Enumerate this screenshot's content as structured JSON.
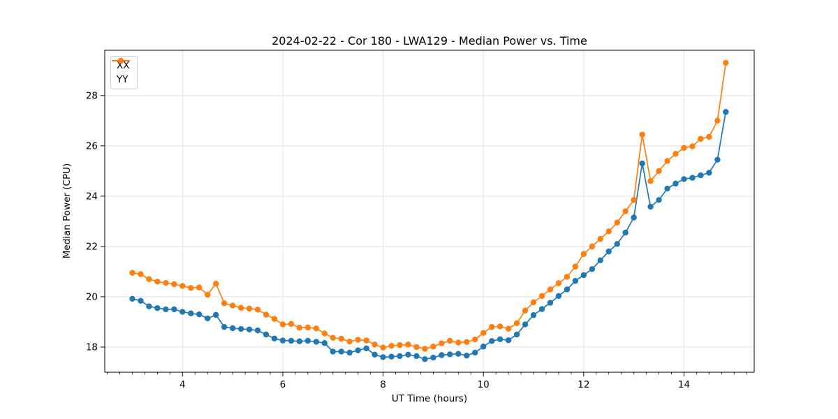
{
  "chart_data": {
    "type": "line",
    "title": "2024-02-22 - Cor 180 - LWA129 - Median Power vs. Time",
    "xlabel": "UT Time (hours)",
    "ylabel": "Median Power (CPU)",
    "xlim": [
      2.45,
      15.4
    ],
    "ylim": [
      17.0,
      29.8
    ],
    "xticks": [
      4,
      6,
      8,
      10,
      12,
      14
    ],
    "yticks": [
      18,
      20,
      22,
      24,
      26,
      28
    ],
    "grid": true,
    "legend_position": "upper-left",
    "background_color": "#ffffff",
    "grid_color": "#cccccc",
    "x": [
      3.0,
      3.167,
      3.333,
      3.5,
      3.667,
      3.833,
      4.0,
      4.167,
      4.333,
      4.5,
      4.667,
      4.833,
      5.0,
      5.167,
      5.333,
      5.5,
      5.667,
      5.833,
      6.0,
      6.167,
      6.333,
      6.5,
      6.667,
      6.833,
      7.0,
      7.167,
      7.333,
      7.5,
      7.667,
      7.833,
      8.0,
      8.167,
      8.333,
      8.5,
      8.667,
      8.833,
      9.0,
      9.167,
      9.333,
      9.5,
      9.667,
      9.833,
      10.0,
      10.167,
      10.333,
      10.5,
      10.667,
      10.833,
      11.0,
      11.167,
      11.333,
      11.5,
      11.667,
      11.833,
      12.0,
      12.167,
      12.333,
      12.5,
      12.667,
      12.833,
      13.0,
      13.167,
      13.333,
      13.5,
      13.667,
      13.833,
      14.0,
      14.167,
      14.333,
      14.5,
      14.667,
      14.833
    ],
    "series": [
      {
        "name": "XX",
        "color": "#1f77b4",
        "marker": "circle",
        "values": [
          19.92,
          19.84,
          19.62,
          19.55,
          19.5,
          19.5,
          19.4,
          19.34,
          19.3,
          19.14,
          19.28,
          18.8,
          18.75,
          18.72,
          18.7,
          18.66,
          18.5,
          18.34,
          18.26,
          18.25,
          18.23,
          18.25,
          18.21,
          18.16,
          17.82,
          17.82,
          17.78,
          17.87,
          17.95,
          17.7,
          17.6,
          17.62,
          17.64,
          17.7,
          17.64,
          17.52,
          17.58,
          17.68,
          17.71,
          17.73,
          17.66,
          17.78,
          18.02,
          18.24,
          18.31,
          18.27,
          18.5,
          18.9,
          19.27,
          19.51,
          19.76,
          20.03,
          20.29,
          20.63,
          20.86,
          21.1,
          21.45,
          21.8,
          22.1,
          22.55,
          23.15,
          25.3,
          23.58,
          23.85,
          24.3,
          24.5,
          24.68,
          24.73,
          24.83,
          24.93,
          25.45,
          27.35
        ]
      },
      {
        "name": "YY",
        "color": "#ff7f0e",
        "marker": "circle",
        "values": [
          20.95,
          20.9,
          20.7,
          20.6,
          20.55,
          20.5,
          20.43,
          20.35,
          20.37,
          20.08,
          20.52,
          19.74,
          19.65,
          19.56,
          19.53,
          19.49,
          19.29,
          19.12,
          18.9,
          18.92,
          18.77,
          18.78,
          18.74,
          18.54,
          18.37,
          18.33,
          18.22,
          18.29,
          18.26,
          18.1,
          17.98,
          18.05,
          18.08,
          18.1,
          18.0,
          17.93,
          18.02,
          18.15,
          18.25,
          18.18,
          18.2,
          18.3,
          18.56,
          18.8,
          18.82,
          18.73,
          18.95,
          19.45,
          19.78,
          20.03,
          20.29,
          20.54,
          20.79,
          21.2,
          21.7,
          22.0,
          22.3,
          22.6,
          22.95,
          23.4,
          23.85,
          26.45,
          24.6,
          25.0,
          25.4,
          25.68,
          25.92,
          25.98,
          26.28,
          26.36,
          27.0,
          29.3
        ]
      }
    ]
  }
}
